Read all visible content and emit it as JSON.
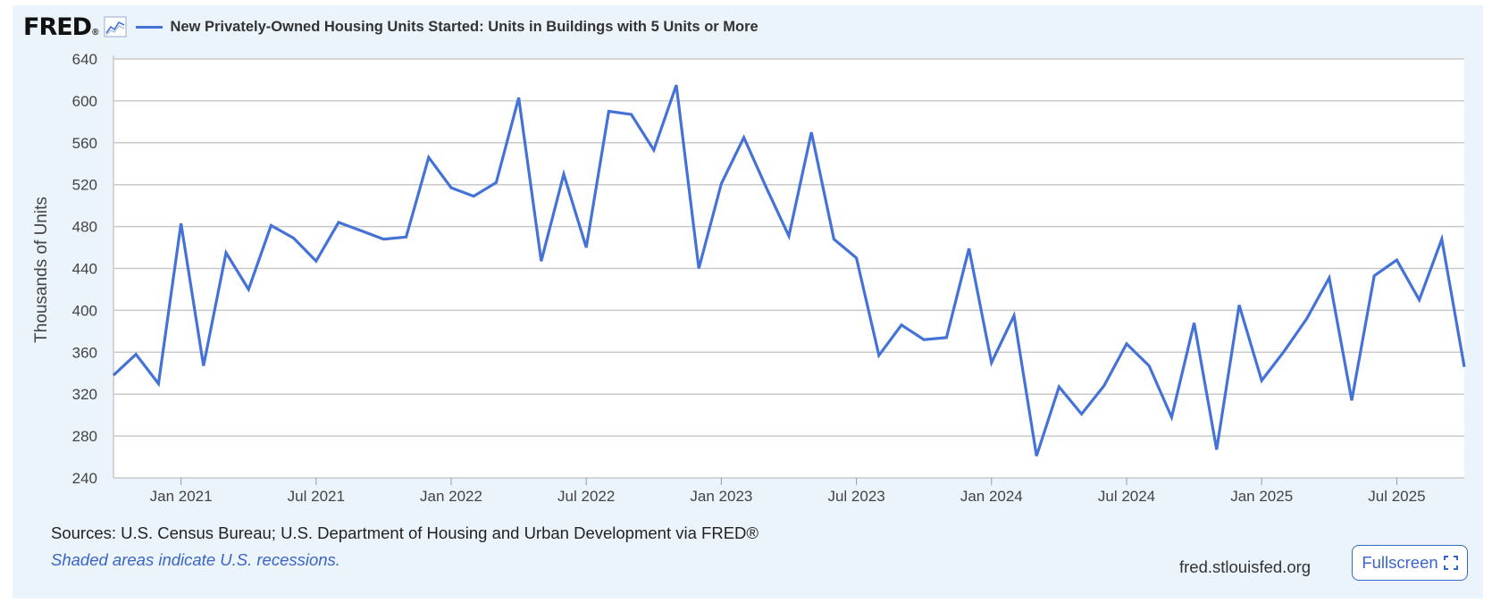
{
  "header": {
    "logo_text": "FRED",
    "logo_mark": "®",
    "series_title": "New Privately-Owned Housing Units Started: Units in Buildings with 5 Units or More"
  },
  "chart_data": {
    "type": "line",
    "ylabel": "Thousands of Units",
    "ylim": [
      240,
      640
    ],
    "yticks": [
      240,
      280,
      320,
      360,
      400,
      440,
      480,
      520,
      560,
      600,
      640
    ],
    "xticks": [
      {
        "label": "Jan 2021",
        "date": "2021-01"
      },
      {
        "label": "Jul 2021",
        "date": "2021-07"
      },
      {
        "label": "Jan 2022",
        "date": "2022-01"
      },
      {
        "label": "Jul 2022",
        "date": "2022-07"
      },
      {
        "label": "Jan 2023",
        "date": "2023-01"
      },
      {
        "label": "Jul 2023",
        "date": "2023-07"
      },
      {
        "label": "Jan 2024",
        "date": "2024-01"
      },
      {
        "label": "Jul 2024",
        "date": "2024-07"
      },
      {
        "label": "Jan 2025",
        "date": "2025-01"
      },
      {
        "label": "Jul 2025",
        "date": "2025-07"
      }
    ],
    "x_start": "2020-10",
    "x_end": "2025-10",
    "grid": true,
    "series": [
      {
        "name": "New Privately-Owned Housing Units Started: Units in Buildings with 5 Units or More",
        "color": "#4472d6",
        "x": [
          "2020-10",
          "2020-11",
          "2020-12",
          "2021-01",
          "2021-02",
          "2021-03",
          "2021-04",
          "2021-05",
          "2021-06",
          "2021-07",
          "2021-08",
          "2021-09",
          "2021-10",
          "2021-11",
          "2021-12",
          "2022-01",
          "2022-02",
          "2022-03",
          "2022-04",
          "2022-05",
          "2022-06",
          "2022-07",
          "2022-08",
          "2022-09",
          "2022-10",
          "2022-11",
          "2022-12",
          "2023-01",
          "2023-02",
          "2023-03",
          "2023-04",
          "2023-05",
          "2023-06",
          "2023-07",
          "2023-08",
          "2023-09",
          "2023-10",
          "2023-11",
          "2023-12",
          "2024-01",
          "2024-02",
          "2024-03",
          "2024-04",
          "2024-05",
          "2024-06",
          "2024-07",
          "2024-08",
          "2024-09",
          "2024-10",
          "2024-11",
          "2024-12",
          "2025-01",
          "2025-02",
          "2025-03",
          "2025-04",
          "2025-05",
          "2025-06",
          "2025-07",
          "2025-08",
          "2025-09",
          "2025-10"
        ],
        "values": [
          338,
          358,
          330,
          483,
          347,
          455,
          420,
          481,
          469,
          447,
          484,
          476,
          468,
          470,
          546,
          517,
          509,
          522,
          603,
          447,
          530,
          460,
          590,
          587,
          553,
          615,
          440,
          521,
          565,
          517,
          471,
          570,
          468,
          450,
          357,
          386,
          372,
          374,
          459,
          350,
          395,
          261,
          327,
          301,
          328,
          368,
          347,
          298,
          388,
          267,
          405,
          333,
          361,
          392,
          431,
          314,
          433,
          448,
          410,
          468,
          346
        ]
      }
    ]
  },
  "footer": {
    "sources": "Sources: U.S. Census Bureau; U.S. Department of Housing and Urban Development via FRED®",
    "shaded_note": "Shaded areas indicate U.S. recessions.",
    "site": "fred.stlouisfed.org",
    "fullscreen_label": "Fullscreen"
  }
}
